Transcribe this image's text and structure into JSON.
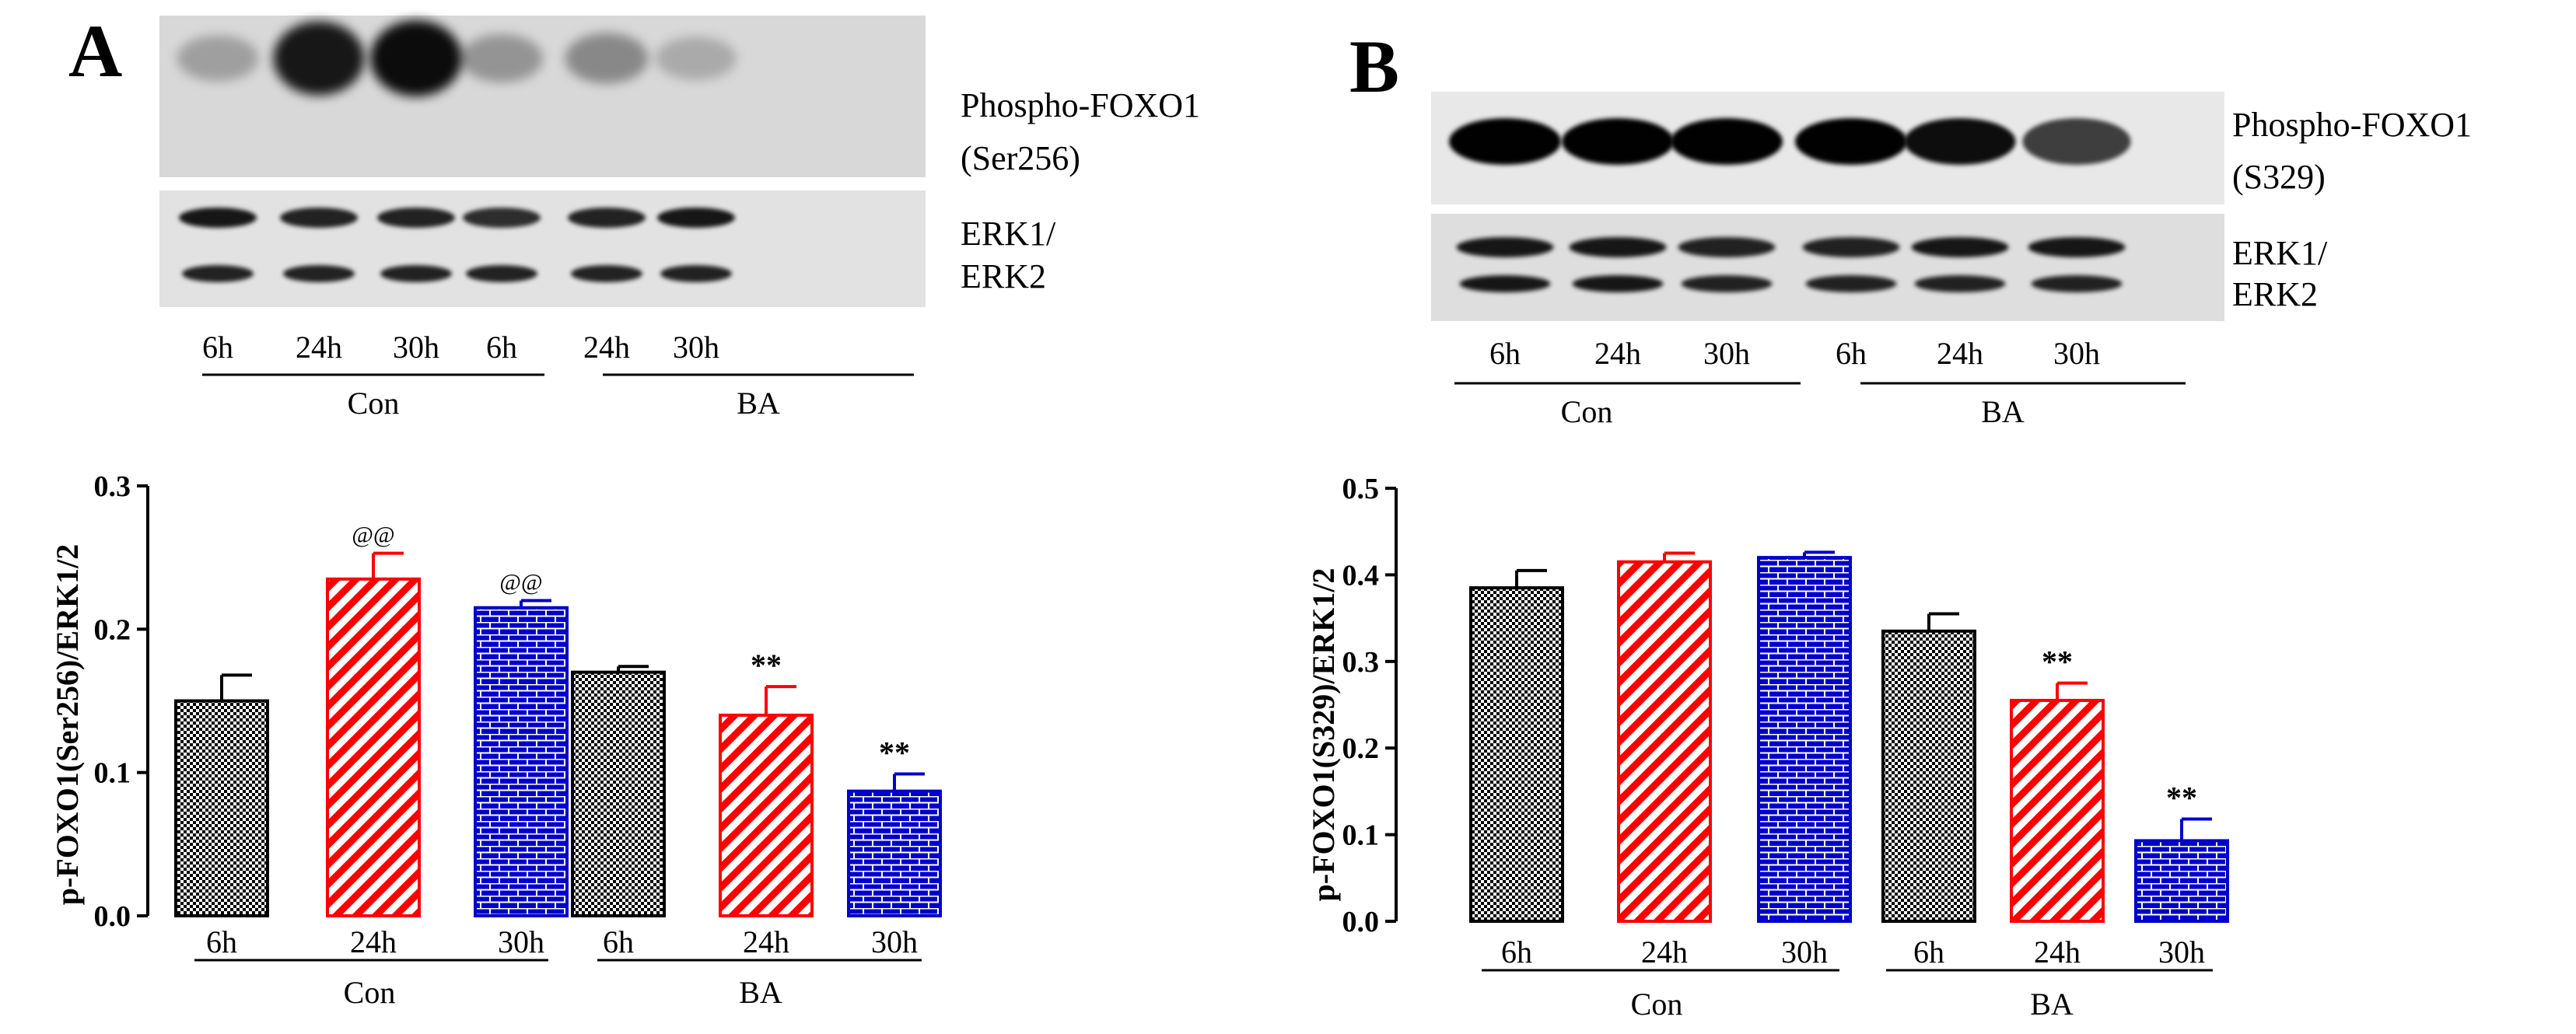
{
  "figure": {
    "panels": [
      {
        "letter": "A",
        "blot_labels": {
          "target": [
            "Phospho-FOXO1",
            "(Ser256)"
          ],
          "loading": [
            "ERK1/",
            "ERK2"
          ]
        },
        "lane_labels": [
          "6h",
          "24h",
          "30h",
          "6h",
          "24h",
          "30h"
        ],
        "group_labels": [
          "Con",
          "BA"
        ],
        "bands": {
          "target_intensity": [
            0.25,
            0.85,
            0.9,
            0.3,
            0.35,
            0.2
          ],
          "erk1_intensity": [
            0.9,
            0.85,
            0.85,
            0.8,
            0.85,
            0.9
          ],
          "erk2_intensity": [
            0.85,
            0.85,
            0.85,
            0.85,
            0.85,
            0.85
          ]
        }
      },
      {
        "letter": "B",
        "blot_labels": {
          "target": [
            "Phospho-FOXO1",
            "(S329)"
          ],
          "loading": [
            "ERK1/",
            "ERK2"
          ]
        },
        "lane_labels": [
          "6h",
          "24h",
          "30h",
          "6h",
          "24h",
          "30h"
        ],
        "group_labels": [
          "Con",
          "BA"
        ],
        "bands": {
          "target_intensity": [
            0.95,
            0.95,
            0.95,
            0.95,
            0.9,
            0.7
          ],
          "erk1_intensity": [
            0.9,
            0.9,
            0.85,
            0.85,
            0.9,
            0.9
          ],
          "erk2_intensity": [
            0.9,
            0.9,
            0.85,
            0.85,
            0.85,
            0.85
          ]
        }
      }
    ]
  },
  "chart_data": [
    {
      "type": "bar",
      "panel": "A",
      "title": "",
      "ylabel": "p-FOXO1(Ser256)/ERK1/2",
      "xlabel": "",
      "ylim": [
        0,
        0.3
      ],
      "yticks": [
        "0.0",
        "0.1",
        "0.2",
        "0.3"
      ],
      "categories": [
        "6h",
        "24h",
        "30h",
        "6h",
        "24h",
        "30h"
      ],
      "groups": [
        {
          "label": "Con",
          "categories": [
            "6h",
            "24h",
            "30h"
          ]
        },
        {
          "label": "BA",
          "categories": [
            "6h",
            "24h",
            "30h"
          ]
        }
      ],
      "values": [
        0.15,
        0.235,
        0.215,
        0.17,
        0.14,
        0.087
      ],
      "errors": [
        0.018,
        0.018,
        0.005,
        0.004,
        0.02,
        0.012
      ],
      "significance": [
        "",
        "@@",
        "@@",
        "",
        "**",
        "**"
      ],
      "patterns": [
        "checker",
        "diagonal",
        "brick",
        "checker",
        "diagonal",
        "brick"
      ],
      "colors": [
        "#000000",
        "#ff0000",
        "#0000cc",
        "#000000",
        "#ff0000",
        "#0000cc"
      ],
      "grid": false
    },
    {
      "type": "bar",
      "panel": "B",
      "title": "",
      "ylabel": "p-FOXO1(S329)/ERK1/2",
      "xlabel": "",
      "ylim": [
        0,
        0.5
      ],
      "yticks": [
        "0.0",
        "0.1",
        "0.2",
        "0.3",
        "0.4",
        "0.5"
      ],
      "categories": [
        "6h",
        "24h",
        "30h",
        "6h",
        "24h",
        "30h"
      ],
      "groups": [
        {
          "label": "Con",
          "categories": [
            "6h",
            "24h",
            "30h"
          ]
        },
        {
          "label": "BA",
          "categories": [
            "6h",
            "24h",
            "30h"
          ]
        }
      ],
      "values": [
        0.385,
        0.415,
        0.42,
        0.335,
        0.255,
        0.093
      ],
      "errors": [
        0.02,
        0.01,
        0.006,
        0.02,
        0.02,
        0.025
      ],
      "significance": [
        "",
        "",
        "",
        "",
        "**",
        "**"
      ],
      "patterns": [
        "checker",
        "diagonal",
        "brick",
        "checker",
        "diagonal",
        "brick"
      ],
      "colors": [
        "#000000",
        "#ff0000",
        "#0000cc",
        "#000000",
        "#ff0000",
        "#0000cc"
      ],
      "grid": false
    }
  ]
}
